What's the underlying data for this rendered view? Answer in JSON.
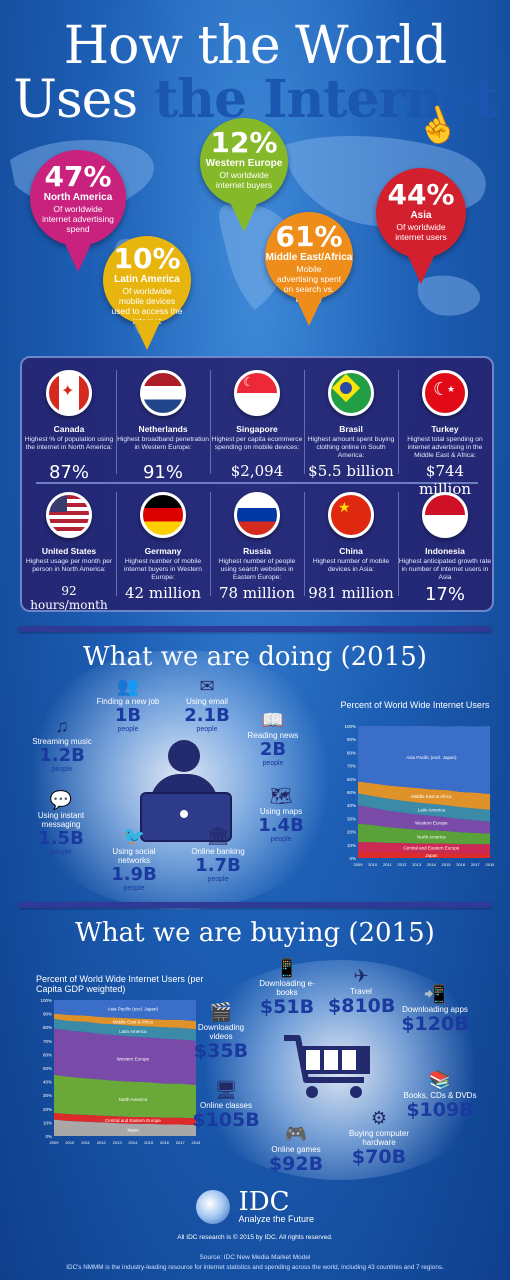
{
  "title": {
    "line1": "How the World",
    "line2_white": "Uses",
    "line2_blue": " the Internet"
  },
  "pins": [
    {
      "pct": "47%",
      "region": "North America",
      "desc": "Of worldwide internet advertising spend",
      "color": "#c8217e"
    },
    {
      "pct": "12%",
      "region": "Western Europe",
      "desc": "Of worldwide internet buyers",
      "color": "#86b92a"
    },
    {
      "pct": "44%",
      "region": "Asia",
      "desc": "Of worldwide internet users",
      "color": "#d3202f"
    },
    {
      "pct": "10%",
      "region": "Latin America",
      "desc": "Of worldwide mobile devices used to access the internet",
      "color": "#e8b50f"
    },
    {
      "pct": "61%",
      "region": "Middle East/Africa",
      "desc": "Mobile advertising spent on search vs. display",
      "color": "#ef8d1a"
    }
  ],
  "countries_top": [
    {
      "name": "Canada",
      "desc": "Highest % of population using the internet in North America:",
      "value": "87%",
      "flag": "canada"
    },
    {
      "name": "Netherlands",
      "desc": "Highest broadband penetration in Western Europe:",
      "value": "91%",
      "flag": "netherlands"
    },
    {
      "name": "Singapore",
      "desc": "Highest per capita ecommerce spending on mobile devices:",
      "value": "$2,094",
      "flag": "singapore"
    },
    {
      "name": "Brasil",
      "desc": "Highest amount spent buying clothing online in South America:",
      "value": "$5.5 billion",
      "flag": "brasil"
    },
    {
      "name": "Turkey",
      "desc": "Highest total spending on internet advertising in the Middle East & Africa:",
      "value": "$744 million",
      "flag": "turkey"
    }
  ],
  "countries_bottom": [
    {
      "name": "United States",
      "desc": "Highest usage per month per person in North America:",
      "value": "92 hours/month",
      "flag": "usa"
    },
    {
      "name": "Germany",
      "desc": "Highest number of mobile internet buyers in Western Europe:",
      "value": "42 million",
      "flag": "germany"
    },
    {
      "name": "Russia",
      "desc": "Highest number of people using search websites in Eastern Europe:",
      "value": "78 million",
      "flag": "russia"
    },
    {
      "name": "China",
      "desc": "Highest number of mobile devices in Asia:",
      "value": "981 million",
      "flag": "china"
    },
    {
      "name": "Indonesia",
      "desc": "Highest anticipated growth rate in number of internet users in Asia",
      "value": "17%",
      "flag": "indonesia"
    }
  ],
  "doing": {
    "heading": "What we are doing (2015)",
    "items": [
      {
        "label": "Finding a new job",
        "value": "1B",
        "unit": "people",
        "icon": "people-icon"
      },
      {
        "label": "Using email",
        "value": "2.1B",
        "unit": "people",
        "icon": "email-icon"
      },
      {
        "label": "Streaming music",
        "value": "1.2B",
        "unit": "people",
        "icon": "music-icon"
      },
      {
        "label": "Reading news",
        "value": "2B",
        "unit": "people",
        "icon": "news-icon"
      },
      {
        "label": "Using maps",
        "value": "1.4B",
        "unit": "people",
        "icon": "map-icon"
      },
      {
        "label": "Using instant messaging",
        "value": "1.5B",
        "unit": "people",
        "icon": "chat-icon"
      },
      {
        "label": "Using social networks",
        "value": "1.9B",
        "unit": "people",
        "icon": "bird-icon"
      },
      {
        "label": "Online banking",
        "value": "1.7B",
        "unit": "people",
        "icon": "bank-icon"
      }
    ]
  },
  "buying": {
    "heading": "What we are buying (2015)",
    "items": [
      {
        "label": "Downloading e-books",
        "value": "$51B",
        "icon": "ebook-icon"
      },
      {
        "label": "Travel",
        "value": "$810B",
        "icon": "plane-icon"
      },
      {
        "label": "Downloading apps",
        "value": "$120B",
        "icon": "apps-icon"
      },
      {
        "label": "Downloading videos",
        "value": "$35B",
        "icon": "video-icon"
      },
      {
        "label": "Books, CDs & DVDs",
        "value": "$109B",
        "icon": "book-icon"
      },
      {
        "label": "Online classes",
        "value": "$105B",
        "icon": "class-icon"
      },
      {
        "label": "Buying computer hardware",
        "value": "$70B",
        "icon": "hardware-icon"
      },
      {
        "label": "Online games",
        "value": "$92B",
        "icon": "gamepad-icon"
      }
    ]
  },
  "chart_data": [
    {
      "type": "area",
      "title": "Percent of World Wide Internet Users",
      "x": [
        "2009",
        "2010",
        "2011",
        "2012",
        "2013",
        "2014",
        "2015",
        "2016",
        "2017",
        "2018"
      ],
      "ylim": [
        0,
        100
      ],
      "yticks": [
        "0%",
        "10%",
        "20%",
        "30%",
        "40%",
        "50%",
        "60%",
        "70%",
        "80%",
        "90%",
        "100%"
      ],
      "series": [
        {
          "name": "Japan",
          "values": [
            5,
            5,
            4.5,
            4.5,
            4,
            4,
            4,
            3.5,
            3.5,
            3.5
          ],
          "color": "#dd2a2a"
        },
        {
          "name": "Central and Eastern Europe",
          "values": [
            7,
            7,
            7,
            7,
            7,
            7,
            7,
            7,
            7,
            7
          ],
          "color": "#cc2a55"
        },
        {
          "name": "North America",
          "values": [
            14,
            13,
            12,
            11,
            10.5,
            10,
            9.5,
            9,
            8.5,
            8
          ],
          "color": "#5aa13a"
        },
        {
          "name": "Western Europe",
          "values": [
            14,
            13,
            12.5,
            12,
            11.5,
            11,
            10.5,
            10,
            9.5,
            9
          ],
          "color": "#7a4aa8"
        },
        {
          "name": "Latin America",
          "values": [
            9,
            9,
            9,
            9,
            9,
            9,
            9,
            9,
            9,
            9
          ],
          "color": "#3a8aa8"
        },
        {
          "name": "Middle East & Africa",
          "values": [
            9,
            9.5,
            10,
            10.5,
            11,
            11,
            11.5,
            11.5,
            12,
            12
          ],
          "color": "#e0922a"
        },
        {
          "name": "Asia Pacific (excl. Japan)",
          "values": [
            42,
            43.5,
            45,
            46,
            47,
            48,
            48,
            50,
            50,
            51.5
          ],
          "color": "#3a6ec8"
        }
      ],
      "legend": "inline"
    },
    {
      "type": "area",
      "title": "Percent of World Wide Internet Users (per Capita GDP weighted)",
      "x": [
        "2009",
        "2010",
        "2011",
        "2012",
        "2013",
        "2014",
        "2015",
        "2016",
        "2017",
        "2018"
      ],
      "ylim": [
        0,
        100
      ],
      "yticks": [
        "0%",
        "10%",
        "20%",
        "30%",
        "40%",
        "50%",
        "60%",
        "70%",
        "80%",
        "90%",
        "100%"
      ],
      "series": [
        {
          "name": "Japan",
          "values": [
            12,
            11,
            10.5,
            10,
            9.5,
            9,
            9,
            8.5,
            8.5,
            8
          ],
          "color": "#a8a8a8"
        },
        {
          "name": "Central and Eastern Europe",
          "values": [
            5,
            5,
            5,
            5,
            5,
            5,
            5,
            5,
            5,
            5
          ],
          "color": "#dd2a2a"
        },
        {
          "name": "North America",
          "values": [
            28,
            27.5,
            27,
            26.5,
            26,
            26,
            25.5,
            25,
            25,
            24.5
          ],
          "color": "#6aa83a"
        },
        {
          "name": "Western Europe",
          "values": [
            34,
            34,
            34,
            33.5,
            33.5,
            33,
            33,
            33,
            32.5,
            32.5
          ],
          "color": "#7a4aa8"
        },
        {
          "name": "Latin America",
          "values": [
            7,
            7,
            7.5,
            7.5,
            8,
            8,
            8,
            8.5,
            8.5,
            8.5
          ],
          "color": "#3a8aa8"
        },
        {
          "name": "Middle East & Africa",
          "values": [
            4,
            4.5,
            4.5,
            5,
            5,
            5.5,
            5.5,
            5.5,
            6,
            6
          ],
          "color": "#e0922a"
        },
        {
          "name": "Asia Pacific (excl. Japan)",
          "values": [
            10,
            11,
            11.5,
            12.5,
            13,
            13.5,
            14,
            14.5,
            14.5,
            15.5
          ],
          "color": "#3a6ec8"
        }
      ],
      "legend": "inline"
    }
  ],
  "footer": {
    "logo": "IDC",
    "tagline": "Analyze the Future",
    "copyright": "All IDC research is © 2015 by IDC. All rights reserved.",
    "source": "Source: IDC New Media Market Model",
    "note": "IDC's NMMM is the industry-leading resource for internet statistics and spending across the world, including 43 countries and 7 regions."
  }
}
